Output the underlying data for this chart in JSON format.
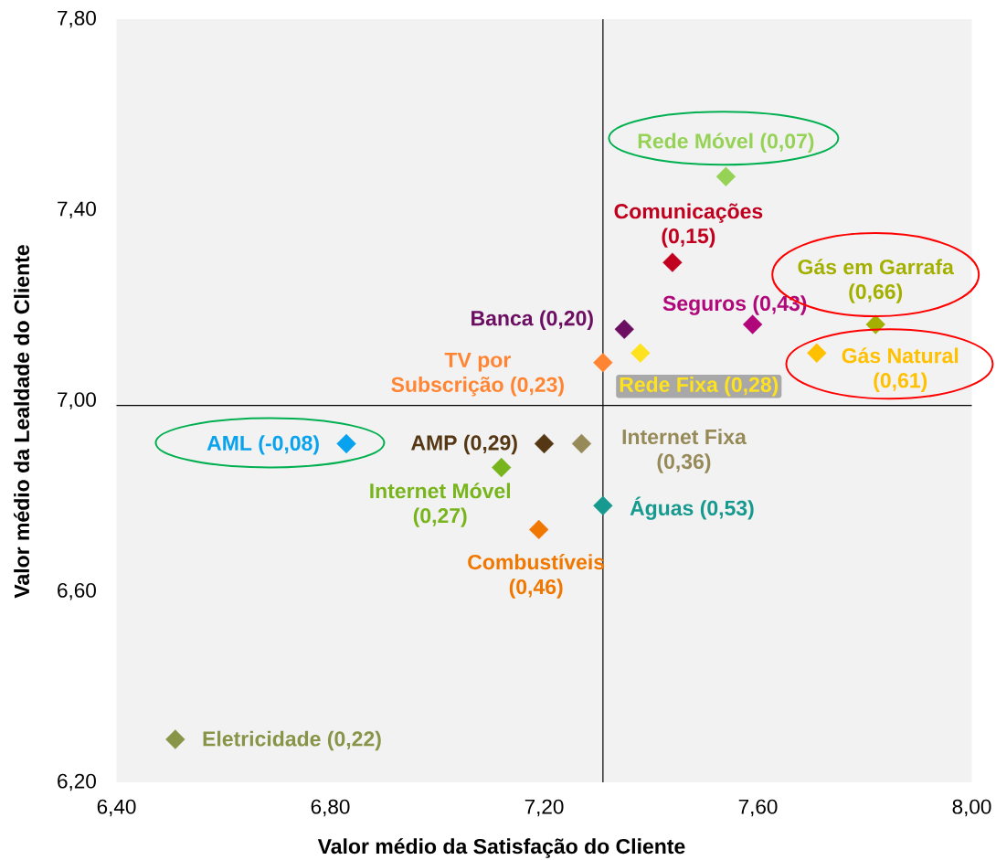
{
  "chart_data": {
    "type": "scatter",
    "xlabel": "Valor médio da Satisfação do Cliente",
    "ylabel": "Valor médio da Lealdade do Cliente",
    "xlim": [
      6.4,
      8.0
    ],
    "ylim": [
      6.2,
      7.8
    ],
    "xticks": [
      {
        "value": 6.4,
        "label": "6,40"
      },
      {
        "value": 6.8,
        "label": "6,80"
      },
      {
        "value": 7.2,
        "label": "7,20"
      },
      {
        "value": 7.6,
        "label": "7,60"
      },
      {
        "value": 8.0,
        "label": "8,00"
      }
    ],
    "yticks": [
      {
        "value": 6.2,
        "label": "6,20"
      },
      {
        "value": 6.6,
        "label": "6,60"
      },
      {
        "value": 7.0,
        "label": "7,00"
      },
      {
        "value": 7.4,
        "label": "7,40"
      },
      {
        "value": 7.8,
        "label": "7,80"
      }
    ],
    "marker": "diamond",
    "legend": false,
    "ref_lines": [
      {
        "axis": "x",
        "value": 7.31,
        "color": "#000000"
      },
      {
        "axis": "y",
        "value": 6.99,
        "color": "#000000"
      }
    ],
    "series": [
      {
        "name": "Rede Móvel (0,07)",
        "color": "#96d255",
        "x": [
          7.54
        ],
        "values": [
          7.47
        ]
      },
      {
        "name": "Comunicações (0,15)",
        "color": "#c0001e",
        "x": [
          7.44
        ],
        "values": [
          7.29
        ]
      },
      {
        "name": "Gás em Garrafa (0,66)",
        "color": "#a4b000",
        "x": [
          7.82
        ],
        "values": [
          7.16
        ]
      },
      {
        "name": "Seguros (0,43)",
        "color": "#b0087a",
        "x": [
          7.59
        ],
        "values": [
          7.16
        ]
      },
      {
        "name": "Banca (0,20)",
        "color": "#6c0f62",
        "x": [
          7.35
        ],
        "values": [
          7.15
        ]
      },
      {
        "name": "Rede Fixa (0,28)",
        "color": "#ffe21f",
        "x": [
          7.38
        ],
        "values": [
          7.1
        ]
      },
      {
        "name": "Gás Natural (0,61)",
        "color": "#ffc000",
        "x": [
          7.71
        ],
        "values": [
          7.1
        ]
      },
      {
        "name": "TV por Subscrição (0,23)",
        "color": "#ff8533",
        "x": [
          7.31
        ],
        "values": [
          7.08
        ]
      },
      {
        "name": "AML (-0,08)",
        "color": "#08a2ee",
        "x": [
          6.83
        ],
        "values": [
          6.91
        ]
      },
      {
        "name": "AMP (0,29)",
        "color": "#553713",
        "x": [
          7.2
        ],
        "values": [
          6.91
        ]
      },
      {
        "name": "Internet Fixa (0,36)",
        "color": "#968a58",
        "x": [
          7.27
        ],
        "values": [
          6.91
        ]
      },
      {
        "name": "Internet Móvel (0,27)",
        "color": "#78b41c",
        "x": [
          7.12
        ],
        "values": [
          6.86
        ]
      },
      {
        "name": "Águas (0,53)",
        "color": "#16998e",
        "x": [
          7.31
        ],
        "values": [
          6.78
        ]
      },
      {
        "name": "Combustíveis (0,46)",
        "color": "#f07800",
        "x": [
          7.19
        ],
        "values": [
          6.73
        ]
      },
      {
        "name": "Eletricidade (0,22)",
        "color": "#889448",
        "x": [
          6.51
        ],
        "values": [
          6.29
        ]
      }
    ]
  }
}
